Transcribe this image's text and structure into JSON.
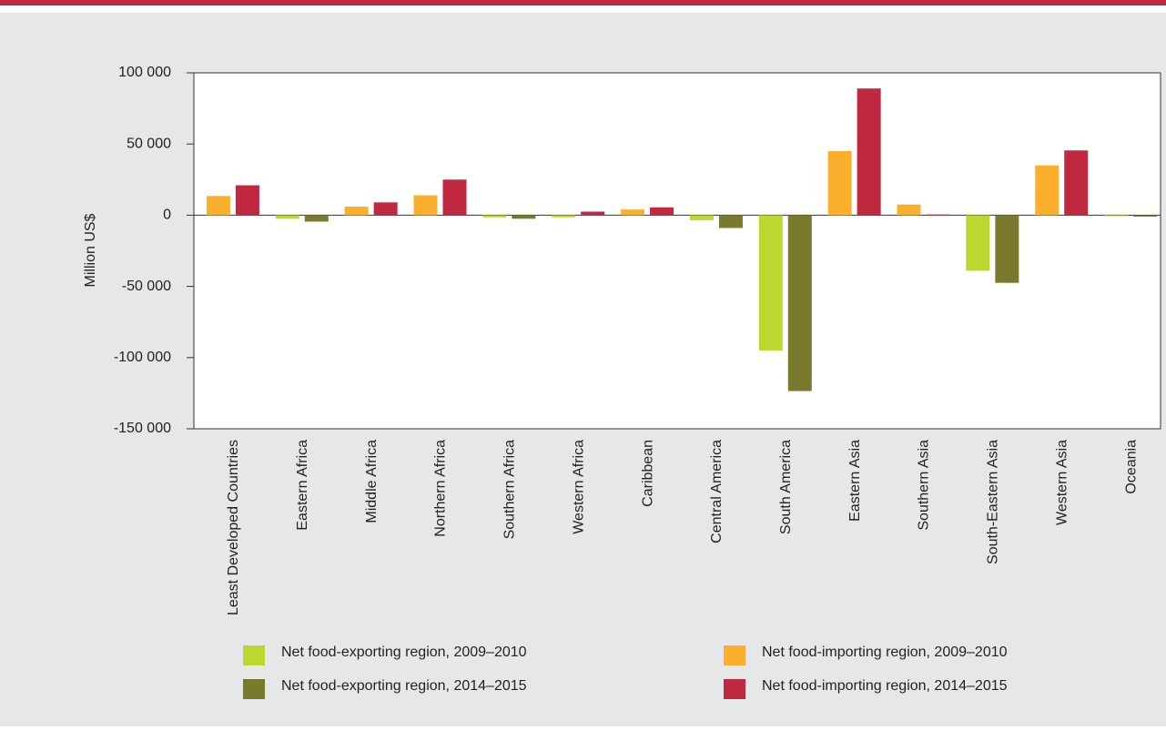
{
  "chart_data": {
    "type": "bar",
    "y_label": "Million US$",
    "categories": [
      "Least Developed Countries",
      "Eastern Africa",
      "Middle Africa",
      "Northern Africa",
      "Southern Africa",
      "Western Africa",
      "Caribbean",
      "Central America",
      "South America",
      "Eastern Asia",
      "Southern Asia",
      "South-Eastern Asia",
      "Western Asia",
      "Oceania"
    ],
    "series": [
      {
        "name": "Net food-exporting region, 2009–2010",
        "color": "#bed630",
        "values": [
          null,
          -2500,
          null,
          null,
          -1500,
          -1500,
          null,
          -3500,
          -95000,
          null,
          null,
          -39000,
          null,
          -300
        ]
      },
      {
        "name": "Net food-exporting region, 2014–2015",
        "color": "#7a7a2e",
        "values": [
          null,
          -4500,
          null,
          null,
          -2500,
          null,
          null,
          -9000,
          -123500,
          null,
          null,
          -47500,
          null,
          -1000
        ]
      },
      {
        "name": "Net food-importing region, 2009–2010",
        "color": "#fbb02d",
        "values": [
          13500,
          null,
          6000,
          14000,
          null,
          null,
          4000,
          null,
          null,
          45000,
          7500,
          null,
          35000,
          null
        ]
      },
      {
        "name": "Net food-importing region, 2014–2015",
        "color": "#c0283f",
        "values": [
          21000,
          null,
          9000,
          25000,
          null,
          2500,
          5500,
          null,
          null,
          89000,
          500,
          null,
          45500,
          null
        ]
      }
    ],
    "ylim": [
      -150000,
      100000
    ],
    "yticks": [
      {
        "value": -150000,
        "label": "-150 000"
      },
      {
        "value": -100000,
        "label": "-100 000"
      },
      {
        "value": -50000,
        "label": "-50 000"
      },
      0,
      {
        "value": 50000,
        "label": "50 000"
      },
      {
        "value": 100000,
        "label": "100 000"
      }
    ]
  }
}
